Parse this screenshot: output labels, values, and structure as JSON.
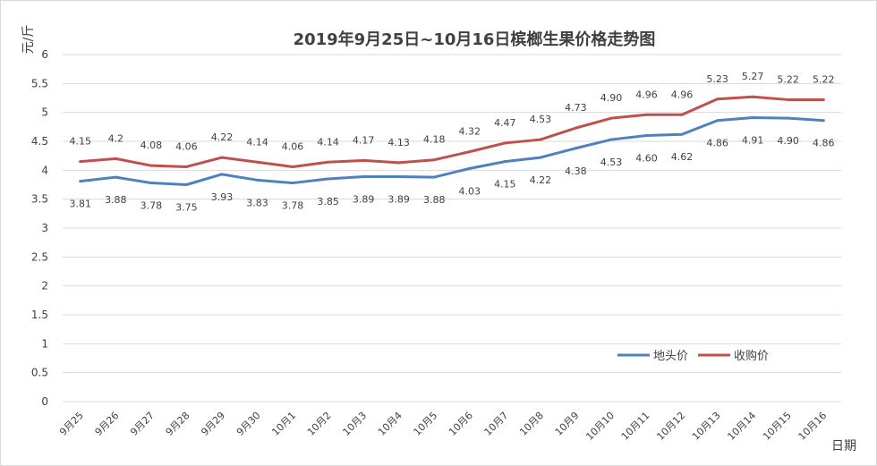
{
  "chart_data": {
    "type": "line",
    "title": "2019年9月25日~10月16日槟榔生果价格走势图",
    "xlabel": "日期",
    "ylabel": "元/斤",
    "ylim": [
      0,
      6
    ],
    "yticks": [
      "0",
      "0.5",
      "1",
      "1.5",
      "2",
      "2.5",
      "3",
      "3.5",
      "4",
      "4.5",
      "5",
      "5.5",
      "6"
    ],
    "grid": true,
    "legend_position": "bottom-right",
    "categories": [
      "9月25",
      "9月26",
      "9月27",
      "9月28",
      "9月29",
      "9月30",
      "10月1",
      "10月2",
      "10月3",
      "10月4",
      "10月5",
      "10月6",
      "10月7",
      "10月8",
      "10月9",
      "10月10",
      "10月11",
      "10月12",
      "10月13",
      "10月14",
      "10月15",
      "10月16"
    ],
    "series": [
      {
        "name": "地头价",
        "color": "#4f81bd",
        "values": [
          3.81,
          3.88,
          3.78,
          3.75,
          3.93,
          3.83,
          3.78,
          3.85,
          3.89,
          3.89,
          3.88,
          4.03,
          4.15,
          4.22,
          4.38,
          4.53,
          4.6,
          4.62,
          4.86,
          4.91,
          4.9,
          4.86
        ],
        "labels": [
          "3.81",
          "3.88",
          "3.78",
          "3.75",
          "3.93",
          "3.83",
          "3.78",
          "3.85",
          "3.89",
          "3.89",
          "3.88",
          "4.03",
          "4.15",
          "4.22",
          "4.38",
          "4.53",
          "4.60",
          "4.62",
          "4.86",
          "4.91",
          "4.90",
          "4.86"
        ],
        "label_position": "below"
      },
      {
        "name": "收购价",
        "color": "#c0504d",
        "values": [
          4.15,
          4.2,
          4.08,
          4.06,
          4.22,
          4.14,
          4.06,
          4.14,
          4.17,
          4.13,
          4.18,
          4.32,
          4.47,
          4.53,
          4.73,
          4.9,
          4.96,
          4.96,
          5.23,
          5.27,
          5.22,
          5.22
        ],
        "labels": [
          "4.15",
          "4.2",
          "4.08",
          "4.06",
          "4.22",
          "4.14",
          "4.06",
          "4.14",
          "4.17",
          "4.13",
          "4.18",
          "4.32",
          "4.47",
          "4.53",
          "4.73",
          "4.90",
          "4.96",
          "4.96",
          "5.23",
          "5.27",
          "5.22",
          "5.22"
        ],
        "label_position": "above"
      }
    ]
  }
}
